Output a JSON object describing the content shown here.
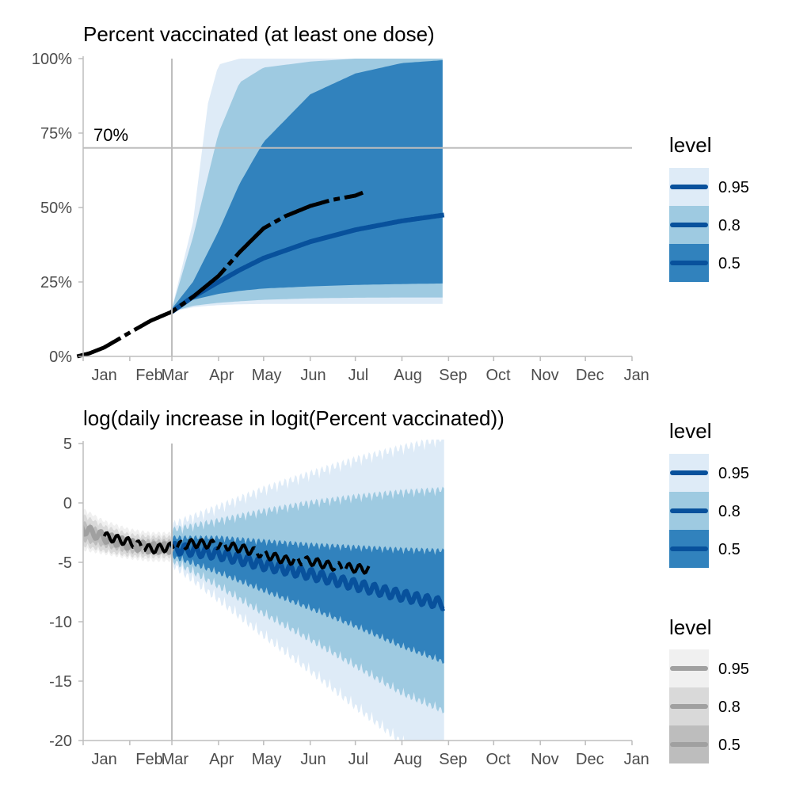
{
  "chart_data": [
    {
      "type": "area",
      "title": "Percent vaccinated (at least one dose)",
      "xlabel": "",
      "ylabel": "",
      "x_ticks": [
        "Jan",
        "Feb",
        "Mar",
        "Apr",
        "May",
        "Jun",
        "Jul",
        "Aug",
        "Sep",
        "Oct",
        "Nov",
        "Dec",
        "Jan"
      ],
      "y_ticks": [
        "0%",
        "25%",
        "50%",
        "75%",
        "100%"
      ],
      "ylim": [
        0,
        1
      ],
      "x_start": "2021-01-01",
      "x_end": "2022-01-01",
      "forecast_start": "2021-03-01",
      "threshold": {
        "value": 0.7,
        "label": "70%"
      },
      "legend": {
        "title": "level",
        "entries": [
          {
            "label": "0.95",
            "color": "#deebf7"
          },
          {
            "label": "0.8",
            "color": "#9ecae1"
          },
          {
            "label": "0.5",
            "color": "#3182bd"
          }
        ],
        "line_color": "#08519c"
      },
      "bands": [
        {
          "level": "0.95",
          "color": "#deebf7",
          "x": [
            "2021-03-01",
            "2021-03-15",
            "2021-03-25",
            "2021-04-01",
            "2021-04-15",
            "2021-05-01",
            "2021-06-01",
            "2021-07-01",
            "2021-08-01",
            "2021-08-29"
          ],
          "lower": [
            0.15,
            0.165,
            0.17,
            0.172,
            0.175,
            0.176,
            0.176,
            0.176,
            0.176,
            0.176
          ],
          "upper": [
            0.16,
            0.45,
            0.85,
            0.98,
            1.0,
            1.0,
            1.0,
            1.0,
            1.0,
            1.0
          ]
        },
        {
          "level": "0.8",
          "color": "#9ecae1",
          "x": [
            "2021-03-01",
            "2021-03-15",
            "2021-04-01",
            "2021-04-15",
            "2021-05-01",
            "2021-06-01",
            "2021-07-01",
            "2021-08-01",
            "2021-08-29"
          ],
          "lower": [
            0.15,
            0.17,
            0.18,
            0.185,
            0.19,
            0.195,
            0.197,
            0.198,
            0.198
          ],
          "upper": [
            0.16,
            0.4,
            0.75,
            0.92,
            0.97,
            0.99,
            1.0,
            1.0,
            1.0
          ]
        },
        {
          "level": "0.5",
          "color": "#3182bd",
          "x": [
            "2021-03-01",
            "2021-03-15",
            "2021-04-01",
            "2021-04-15",
            "2021-05-01",
            "2021-06-01",
            "2021-07-01",
            "2021-08-01",
            "2021-08-29"
          ],
          "lower": [
            0.15,
            0.19,
            0.21,
            0.22,
            0.228,
            0.235,
            0.24,
            0.243,
            0.245
          ],
          "upper": [
            0.16,
            0.25,
            0.42,
            0.58,
            0.72,
            0.88,
            0.95,
            0.985,
            0.995
          ]
        }
      ],
      "median": {
        "color": "#08519c",
        "x": [
          "2021-03-01",
          "2021-03-15",
          "2021-04-01",
          "2021-04-15",
          "2021-05-01",
          "2021-06-01",
          "2021-07-01",
          "2021-08-01",
          "2021-08-29"
        ],
        "y": [
          0.15,
          0.2,
          0.25,
          0.29,
          0.33,
          0.385,
          0.425,
          0.455,
          0.475
        ]
      },
      "observed": {
        "color": "#000000",
        "x": [
          "2020-12-28",
          "2021-01-05",
          "2021-01-15",
          "2021-02-01",
          "2021-02-15",
          "2021-03-01",
          "2021-03-15",
          "2021-04-01",
          "2021-04-15",
          "2021-05-01",
          "2021-05-15",
          "2021-06-01",
          "2021-06-15",
          "2021-07-01",
          "2021-07-06"
        ],
        "y": [
          0.0,
          0.01,
          0.03,
          0.08,
          0.12,
          0.15,
          0.2,
          0.27,
          0.35,
          0.43,
          0.47,
          0.505,
          0.525,
          0.54,
          0.55
        ]
      }
    },
    {
      "type": "area",
      "title": "log(daily increase in logit(Percent vaccinated))",
      "xlabel": "",
      "ylabel": "",
      "x_ticks": [
        "Jan",
        "Feb",
        "Mar",
        "Apr",
        "May",
        "Jun",
        "Jul",
        "Aug",
        "Sep",
        "Oct",
        "Nov",
        "Dec",
        "Jan"
      ],
      "y_ticks": [
        "5",
        "0",
        "-5",
        "-10",
        "-15",
        "-20"
      ],
      "ylim": [
        -20,
        5
      ],
      "x_start": "2021-01-01",
      "x_end": "2022-01-01",
      "forecast_start": "2021-03-01",
      "legend_forecast": {
        "title": "level",
        "entries": [
          {
            "label": "0.95",
            "color": "#deebf7"
          },
          {
            "label": "0.8",
            "color": "#9ecae1"
          },
          {
            "label": "0.5",
            "color": "#3182bd"
          }
        ],
        "line_color": "#08519c"
      },
      "legend_fit": {
        "title": "level",
        "entries": [
          {
            "label": "0.95",
            "color": "#f0f0f0"
          },
          {
            "label": "0.8",
            "color": "#d9d9d9"
          },
          {
            "label": "0.5",
            "color": "#bdbdbd"
          }
        ],
        "line_color": "#a0a0a0"
      },
      "bands": [
        {
          "level": "0.95",
          "color": "#deebf7",
          "x": [
            "2021-03-01",
            "2021-04-01",
            "2021-05-01",
            "2021-06-01",
            "2021-07-01",
            "2021-08-01",
            "2021-08-29"
          ],
          "lower": [
            -4.5,
            -7.5,
            -10.5,
            -13.5,
            -16.5,
            -19.5,
            -21.0
          ],
          "upper": [
            -2.5,
            -1.0,
            0.5,
            1.8,
            3.0,
            4.0,
            4.8
          ]
        },
        {
          "level": "0.8",
          "color": "#9ecae1",
          "x": [
            "2021-03-01",
            "2021-04-01",
            "2021-05-01",
            "2021-06-01",
            "2021-07-01",
            "2021-08-01",
            "2021-08-29"
          ],
          "lower": [
            -4.3,
            -6.5,
            -8.8,
            -11.0,
            -13.2,
            -15.5,
            -17.0
          ],
          "upper": [
            -2.8,
            -2.0,
            -1.2,
            -0.5,
            0.0,
            0.4,
            0.6
          ]
        },
        {
          "level": "0.5",
          "color": "#3182bd",
          "x": [
            "2021-03-01",
            "2021-04-01",
            "2021-05-01",
            "2021-06-01",
            "2021-07-01",
            "2021-08-01",
            "2021-08-29"
          ],
          "lower": [
            -4.1,
            -5.5,
            -7.0,
            -8.5,
            -10.0,
            -11.7,
            -13.0
          ],
          "upper": [
            -3.3,
            -3.3,
            -3.6,
            -3.9,
            -4.1,
            -4.3,
            -4.4
          ]
        }
      ],
      "fit_bands": [
        {
          "level": "0.95",
          "color": "#f0f0f0",
          "x": [
            "2020-12-28",
            "2021-01-15",
            "2021-02-01",
            "2021-02-15",
            "2021-03-01"
          ],
          "lower": [
            -3.6,
            -4.0,
            -4.4,
            -4.6,
            -4.6
          ],
          "upper": [
            -0.5,
            -1.8,
            -2.5,
            -2.8,
            -2.8
          ]
        },
        {
          "level": "0.8",
          "color": "#d9d9d9",
          "x": [
            "2020-12-28",
            "2021-01-15",
            "2021-02-01",
            "2021-02-15",
            "2021-03-01"
          ],
          "lower": [
            -3.2,
            -3.8,
            -4.2,
            -4.3,
            -4.3
          ],
          "upper": [
            -1.0,
            -2.2,
            -2.9,
            -3.1,
            -3.1
          ]
        },
        {
          "level": "0.5",
          "color": "#bdbdbd",
          "x": [
            "2020-12-28",
            "2021-01-15",
            "2021-02-01",
            "2021-02-15",
            "2021-03-01"
          ],
          "lower": [
            -2.8,
            -3.4,
            -3.9,
            -4.0,
            -4.0
          ],
          "upper": [
            -1.6,
            -2.7,
            -3.3,
            -3.4,
            -3.4
          ]
        }
      ],
      "median": {
        "color": "#08519c",
        "x": [
          "2021-03-01",
          "2021-04-01",
          "2021-05-01",
          "2021-06-01",
          "2021-07-01",
          "2021-08-01",
          "2021-08-29"
        ],
        "y": [
          -3.8,
          -4.3,
          -5.2,
          -6.0,
          -6.9,
          -7.8,
          -8.5
        ]
      },
      "fit_median": {
        "color": "#a0a0a0",
        "x": [
          "2020-12-28",
          "2021-01-15",
          "2021-02-01",
          "2021-02-15",
          "2021-03-01"
        ],
        "y": [
          -2.0,
          -2.9,
          -3.5,
          -3.8,
          -3.8
        ]
      },
      "observed": {
        "color": "#000000",
        "x": [
          "2021-01-15",
          "2021-02-01",
          "2021-02-15",
          "2021-03-01",
          "2021-03-15",
          "2021-04-01",
          "2021-04-15",
          "2021-05-01",
          "2021-05-15",
          "2021-06-01",
          "2021-06-15",
          "2021-07-01",
          "2021-07-10"
        ],
        "y": [
          -2.8,
          -3.3,
          -3.9,
          -3.7,
          -3.4,
          -3.5,
          -3.8,
          -4.3,
          -4.8,
          -4.9,
          -5.3,
          -5.5,
          -5.6
        ]
      }
    }
  ]
}
